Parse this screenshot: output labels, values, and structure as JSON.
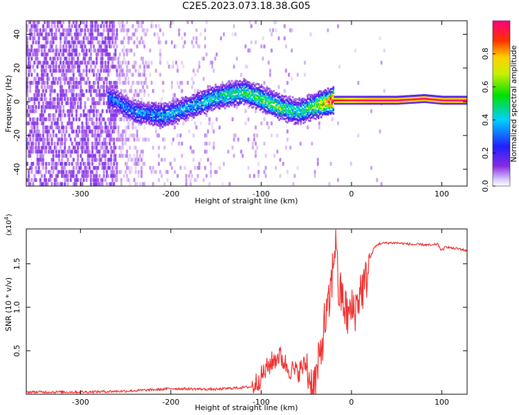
{
  "title": "C2E5.2023.073.18.38.G05",
  "chart_data": [
    {
      "type": "heatmap",
      "xlabel": "Height of straight line (km)",
      "ylabel": "Frequency (Hz)",
      "xlim": [
        -360,
        128
      ],
      "ylim": [
        -50,
        48
      ],
      "xticks": [
        -300,
        -200,
        -100,
        0,
        100
      ],
      "yticks": [
        -40,
        -20,
        0,
        20,
        40
      ],
      "colorbar": {
        "label": "Normalized spectral amplitude",
        "range": [
          0.0,
          1.0
        ],
        "ticks": [
          "0.0",
          "0.2",
          "0.4",
          "0.6",
          "0.8"
        ],
        "colormap": "rainbow (white → purple → blue → cyan → green → yellow → orange → red → magenta)",
        "colors": [
          "#ffffff",
          "#8a2be2",
          "#2020ff",
          "#00d0ff",
          "#00e000",
          "#ffff00",
          "#ff8000",
          "#ff0000",
          "#ff0080"
        ]
      },
      "ridge": {
        "description": "Dominant frequency band versus height",
        "x": [
          -270,
          -240,
          -210,
          -180,
          -150,
          -120,
          -100,
          -80,
          -60,
          -40,
          -20,
          0,
          20,
          50,
          80,
          100,
          128
        ],
        "y": [
          3,
          -6,
          -8,
          -3,
          3,
          6,
          2,
          -3,
          -6,
          -2,
          1,
          1,
          1,
          1,
          2,
          1,
          1
        ],
        "peak_amplitude": [
          0.3,
          0.3,
          0.35,
          0.35,
          0.4,
          0.45,
          0.5,
          0.5,
          0.4,
          0.55,
          0.9,
          0.95,
          1.0,
          1.0,
          1.0,
          1.0,
          1.0
        ]
      },
      "noise_region": {
        "x_range": [
          -360,
          -230
        ],
        "amplitude": "low, scattered purple across all frequencies"
      },
      "grid": false
    },
    {
      "type": "line",
      "xlabel": "Height of straight line (km)",
      "ylabel": "SNR (10 * v/v)",
      "y_multiplier": "(x10^4)",
      "xlim": [
        -360,
        128
      ],
      "ylim": [
        0,
        1.9
      ],
      "xticks": [
        -300,
        -200,
        -100,
        0,
        100
      ],
      "yticks": [
        0.5,
        1.0,
        1.5
      ],
      "series": [
        {
          "color": "#f03030",
          "x": [
            -360,
            -300,
            -250,
            -210,
            -200,
            -150,
            -110,
            -100,
            -90,
            -80,
            -70,
            -60,
            -50,
            -45,
            -40,
            -35,
            -30,
            -25,
            -20,
            -17,
            -15,
            -10,
            -5,
            0,
            5,
            10,
            15,
            20,
            25,
            30,
            40,
            50,
            60,
            70,
            80,
            90,
            95,
            100,
            105,
            110,
            120,
            128
          ],
          "y": [
            0.02,
            0.02,
            0.03,
            0.05,
            0.06,
            0.05,
            0.08,
            0.2,
            0.35,
            0.45,
            0.3,
            0.25,
            0.35,
            0.1,
            0.15,
            0.4,
            0.8,
            1.0,
            1.5,
            1.9,
            1.2,
            1.1,
            0.9,
            0.95,
            1.0,
            1.2,
            1.25,
            1.55,
            1.68,
            1.73,
            1.74,
            1.74,
            1.73,
            1.72,
            1.72,
            1.71,
            1.73,
            1.65,
            1.7,
            1.68,
            1.67,
            1.65
          ]
        }
      ],
      "grid": false
    }
  ]
}
